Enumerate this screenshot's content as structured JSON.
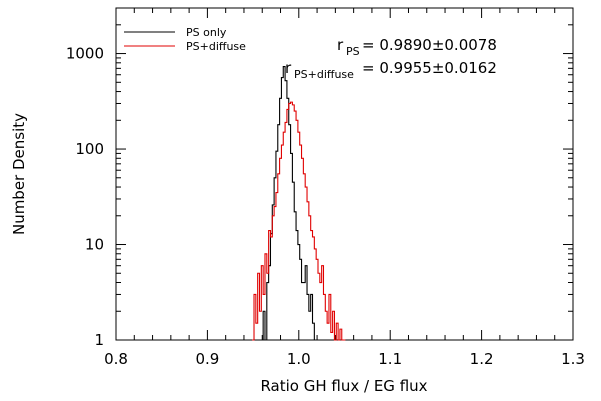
{
  "chart_data": {
    "type": "line",
    "title": "",
    "xlabel": "Ratio GH flux / EG flux",
    "ylabel": "Number Density",
    "xlim": [
      0.8,
      1.3
    ],
    "ylim": [
      1,
      3000
    ],
    "y_scale": "log",
    "x_ticks": [
      "0.8",
      "0.9",
      "1.0",
      "1.1",
      "1.2",
      "1.3"
    ],
    "y_ticks": [
      "1",
      "10",
      "100",
      "1000"
    ],
    "legend_position": "top-left",
    "series": [
      {
        "name": "PS only",
        "color": "#000000",
        "x": [
          0.96,
          0.962,
          0.964,
          0.966,
          0.968,
          0.97,
          0.972,
          0.974,
          0.976,
          0.978,
          0.98,
          0.982,
          0.984,
          0.986,
          0.988,
          0.99,
          0.992,
          0.994,
          0.996,
          0.998,
          1.0,
          1.002,
          1.004,
          1.006,
          1.008,
          1.01,
          1.012,
          1.014,
          1.016,
          1.018
        ],
        "y": [
          1,
          2,
          1,
          4,
          6,
          13,
          26,
          50,
          95,
          180,
          340,
          560,
          730,
          520,
          340,
          180,
          90,
          45,
          22,
          14,
          10,
          7,
          4,
          4,
          6,
          3,
          2,
          3,
          1.5,
          1
        ]
      },
      {
        "name": "PS+diffuse",
        "color": "#e00000",
        "x": [
          0.95,
          0.952,
          0.954,
          0.956,
          0.958,
          0.96,
          0.962,
          0.964,
          0.966,
          0.968,
          0.97,
          0.972,
          0.974,
          0.976,
          0.978,
          0.98,
          0.982,
          0.984,
          0.986,
          0.988,
          0.99,
          0.992,
          0.994,
          0.996,
          0.998,
          1.0,
          1.002,
          1.004,
          1.006,
          1.008,
          1.01,
          1.012,
          1.014,
          1.016,
          1.018,
          1.02,
          1.022,
          1.024,
          1.026,
          1.028,
          1.03,
          1.032,
          1.034,
          1.036,
          1.038,
          1.04,
          1.042,
          1.044,
          1.046,
          1.048,
          1.05
        ],
        "y": [
          1,
          3,
          1.5,
          5,
          2,
          6,
          3,
          8,
          5,
          14,
          12,
          20,
          25,
          35,
          55,
          80,
          110,
          150,
          190,
          260,
          300,
          310,
          290,
          250,
          200,
          150,
          110,
          80,
          55,
          40,
          28,
          20,
          14,
          12,
          9,
          7,
          5,
          4,
          6,
          3,
          2,
          1.5,
          3,
          1.2,
          2,
          1,
          1.5,
          1,
          1.3,
          1,
          1
        ]
      }
    ],
    "annotations": [
      {
        "base": "r",
        "sub": "PS",
        "value": "= 0.9890±0.0078"
      },
      {
        "base": "r",
        "sub": "PS+diffuse",
        "value": "= 0.9955±0.0162"
      }
    ]
  }
}
